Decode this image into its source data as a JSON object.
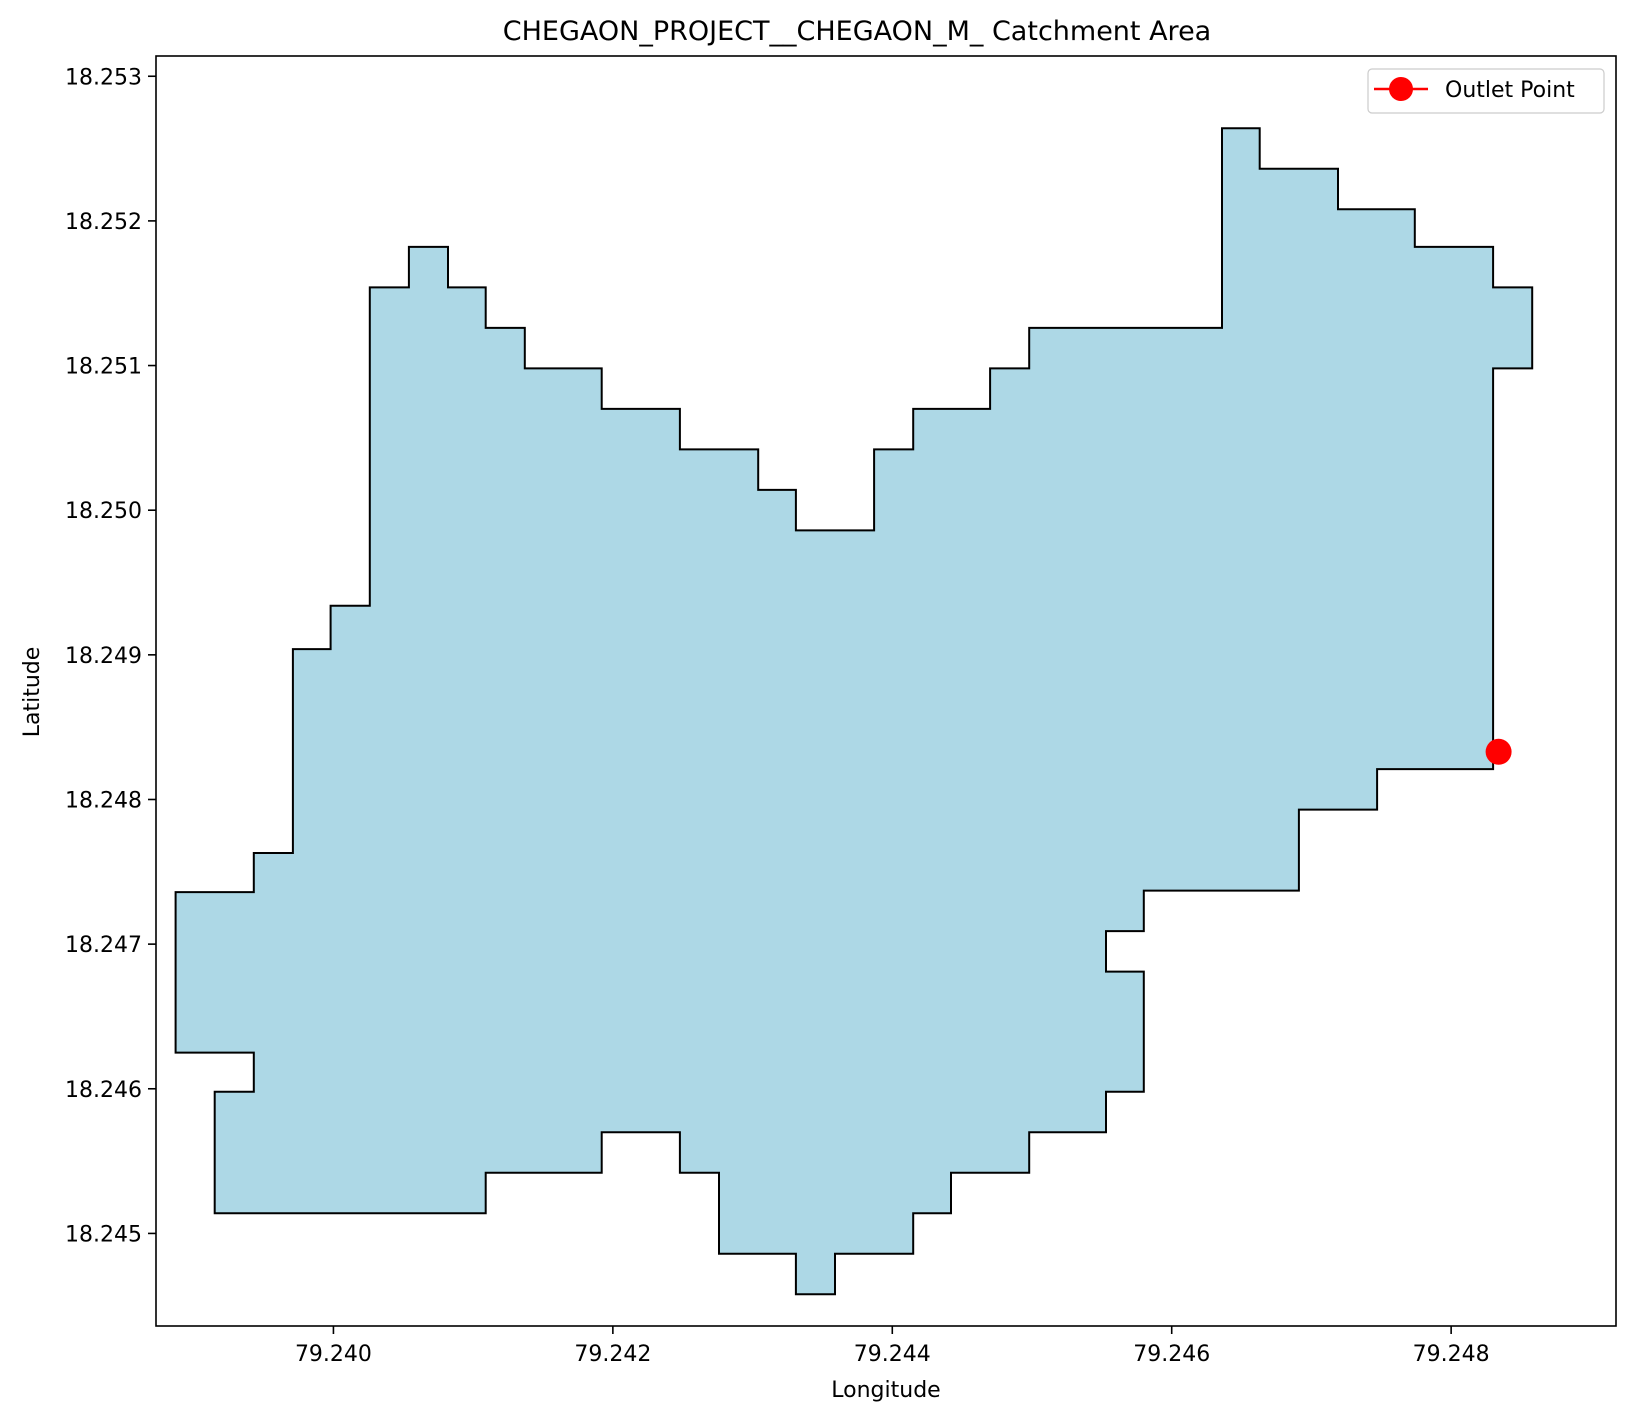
{
  "chart_data": {
    "type": "area",
    "title": "CHEGAON_PROJECT__CHEGAON_M_ Catchment Area",
    "xlabel": "Longitude",
    "ylabel": "Latitude",
    "xlim": [
      79.23873,
      79.24918
    ],
    "ylim": [
      18.24436,
      18.25314
    ],
    "xticks": [
      79.24,
      79.242,
      79.244,
      79.246,
      79.248
    ],
    "xtick_labels": [
      "79.240",
      "79.242",
      "79.244",
      "79.246",
      "79.248"
    ],
    "yticks": [
      18.245,
      18.246,
      18.247,
      18.248,
      18.249,
      18.25,
      18.251,
      18.252,
      18.253
    ],
    "ytick_labels": [
      "18.245",
      "18.246",
      "18.247",
      "18.248",
      "18.249",
      "18.250",
      "18.251",
      "18.252",
      "18.253"
    ],
    "grid": false,
    "legend": {
      "position": "top-right",
      "entries": [
        "Outlet Point"
      ]
    },
    "colors": {
      "fill": "#add8e6",
      "edge": "#000000",
      "outlet": "#ff0000"
    },
    "catchment_polygon": [
      [
        79.24026,
        18.24934
      ],
      [
        79.24026,
        18.25154
      ],
      [
        79.24054,
        18.25154
      ],
      [
        79.24054,
        18.25182
      ],
      [
        79.24082,
        18.25182
      ],
      [
        79.24082,
        18.25154
      ],
      [
        79.24109,
        18.25154
      ],
      [
        79.24109,
        18.25126
      ],
      [
        79.24137,
        18.25126
      ],
      [
        79.24137,
        18.25098
      ],
      [
        79.24192,
        18.25098
      ],
      [
        79.24192,
        18.2507
      ],
      [
        79.24248,
        18.2507
      ],
      [
        79.24248,
        18.25042
      ],
      [
        79.24304,
        18.25042
      ],
      [
        79.24304,
        18.25014
      ],
      [
        79.24331,
        18.25014
      ],
      [
        79.24331,
        18.24986
      ],
      [
        79.24387,
        18.24986
      ],
      [
        79.24387,
        18.25042
      ],
      [
        79.24415,
        18.25042
      ],
      [
        79.24415,
        18.2507
      ],
      [
        79.2447,
        18.2507
      ],
      [
        79.2447,
        18.25098
      ],
      [
        79.24498,
        18.25098
      ],
      [
        79.24498,
        18.25126
      ],
      [
        79.24636,
        18.25126
      ],
      [
        79.24636,
        18.25264
      ],
      [
        79.24663,
        18.25264
      ],
      [
        79.24663,
        18.25236
      ],
      [
        79.24719,
        18.25236
      ],
      [
        79.24719,
        18.25208
      ],
      [
        79.24774,
        18.25208
      ],
      [
        79.24774,
        18.25182
      ],
      [
        79.2483,
        18.25182
      ],
      [
        79.2483,
        18.25154
      ],
      [
        79.24858,
        18.25154
      ],
      [
        79.24858,
        18.25098
      ],
      [
        79.2483,
        18.25098
      ],
      [
        79.2483,
        18.24821
      ],
      [
        79.24747,
        18.24821
      ],
      [
        79.24747,
        18.24793
      ],
      [
        79.24691,
        18.24793
      ],
      [
        79.24691,
        18.24737
      ],
      [
        79.2458,
        18.24737
      ],
      [
        79.2458,
        18.24709
      ],
      [
        79.24553,
        18.24709
      ],
      [
        79.24553,
        18.24681
      ],
      [
        79.2458,
        18.24681
      ],
      [
        79.2458,
        18.24598
      ],
      [
        79.24553,
        18.24598
      ],
      [
        79.24553,
        18.2457
      ],
      [
        79.24498,
        18.2457
      ],
      [
        79.24498,
        18.24542
      ],
      [
        79.24442,
        18.24542
      ],
      [
        79.24442,
        18.24514
      ],
      [
        79.24415,
        18.24514
      ],
      [
        79.24415,
        18.24486
      ],
      [
        79.24359,
        18.24486
      ],
      [
        79.24359,
        18.24458
      ],
      [
        79.24331,
        18.24458
      ],
      [
        79.24331,
        18.24486
      ],
      [
        79.24276,
        18.24486
      ],
      [
        79.24276,
        18.24542
      ],
      [
        79.24248,
        18.24542
      ],
      [
        79.24248,
        18.2457
      ],
      [
        79.24192,
        18.2457
      ],
      [
        79.24192,
        18.24542
      ],
      [
        79.24109,
        18.24542
      ],
      [
        79.24109,
        18.24514
      ],
      [
        79.23915,
        18.24514
      ],
      [
        79.23915,
        18.24598
      ],
      [
        79.23943,
        18.24598
      ],
      [
        79.23943,
        18.24625
      ],
      [
        79.23887,
        18.24625
      ],
      [
        79.23887,
        18.24736
      ],
      [
        79.23943,
        18.24736
      ],
      [
        79.23943,
        18.24763
      ],
      [
        79.23971,
        18.24763
      ],
      [
        79.23971,
        18.24904
      ],
      [
        79.23998,
        18.24904
      ],
      [
        79.23998,
        18.24934
      ]
    ],
    "outlet_point": {
      "label": "Outlet Point",
      "x": 79.24834,
      "y": 18.24833
    }
  }
}
